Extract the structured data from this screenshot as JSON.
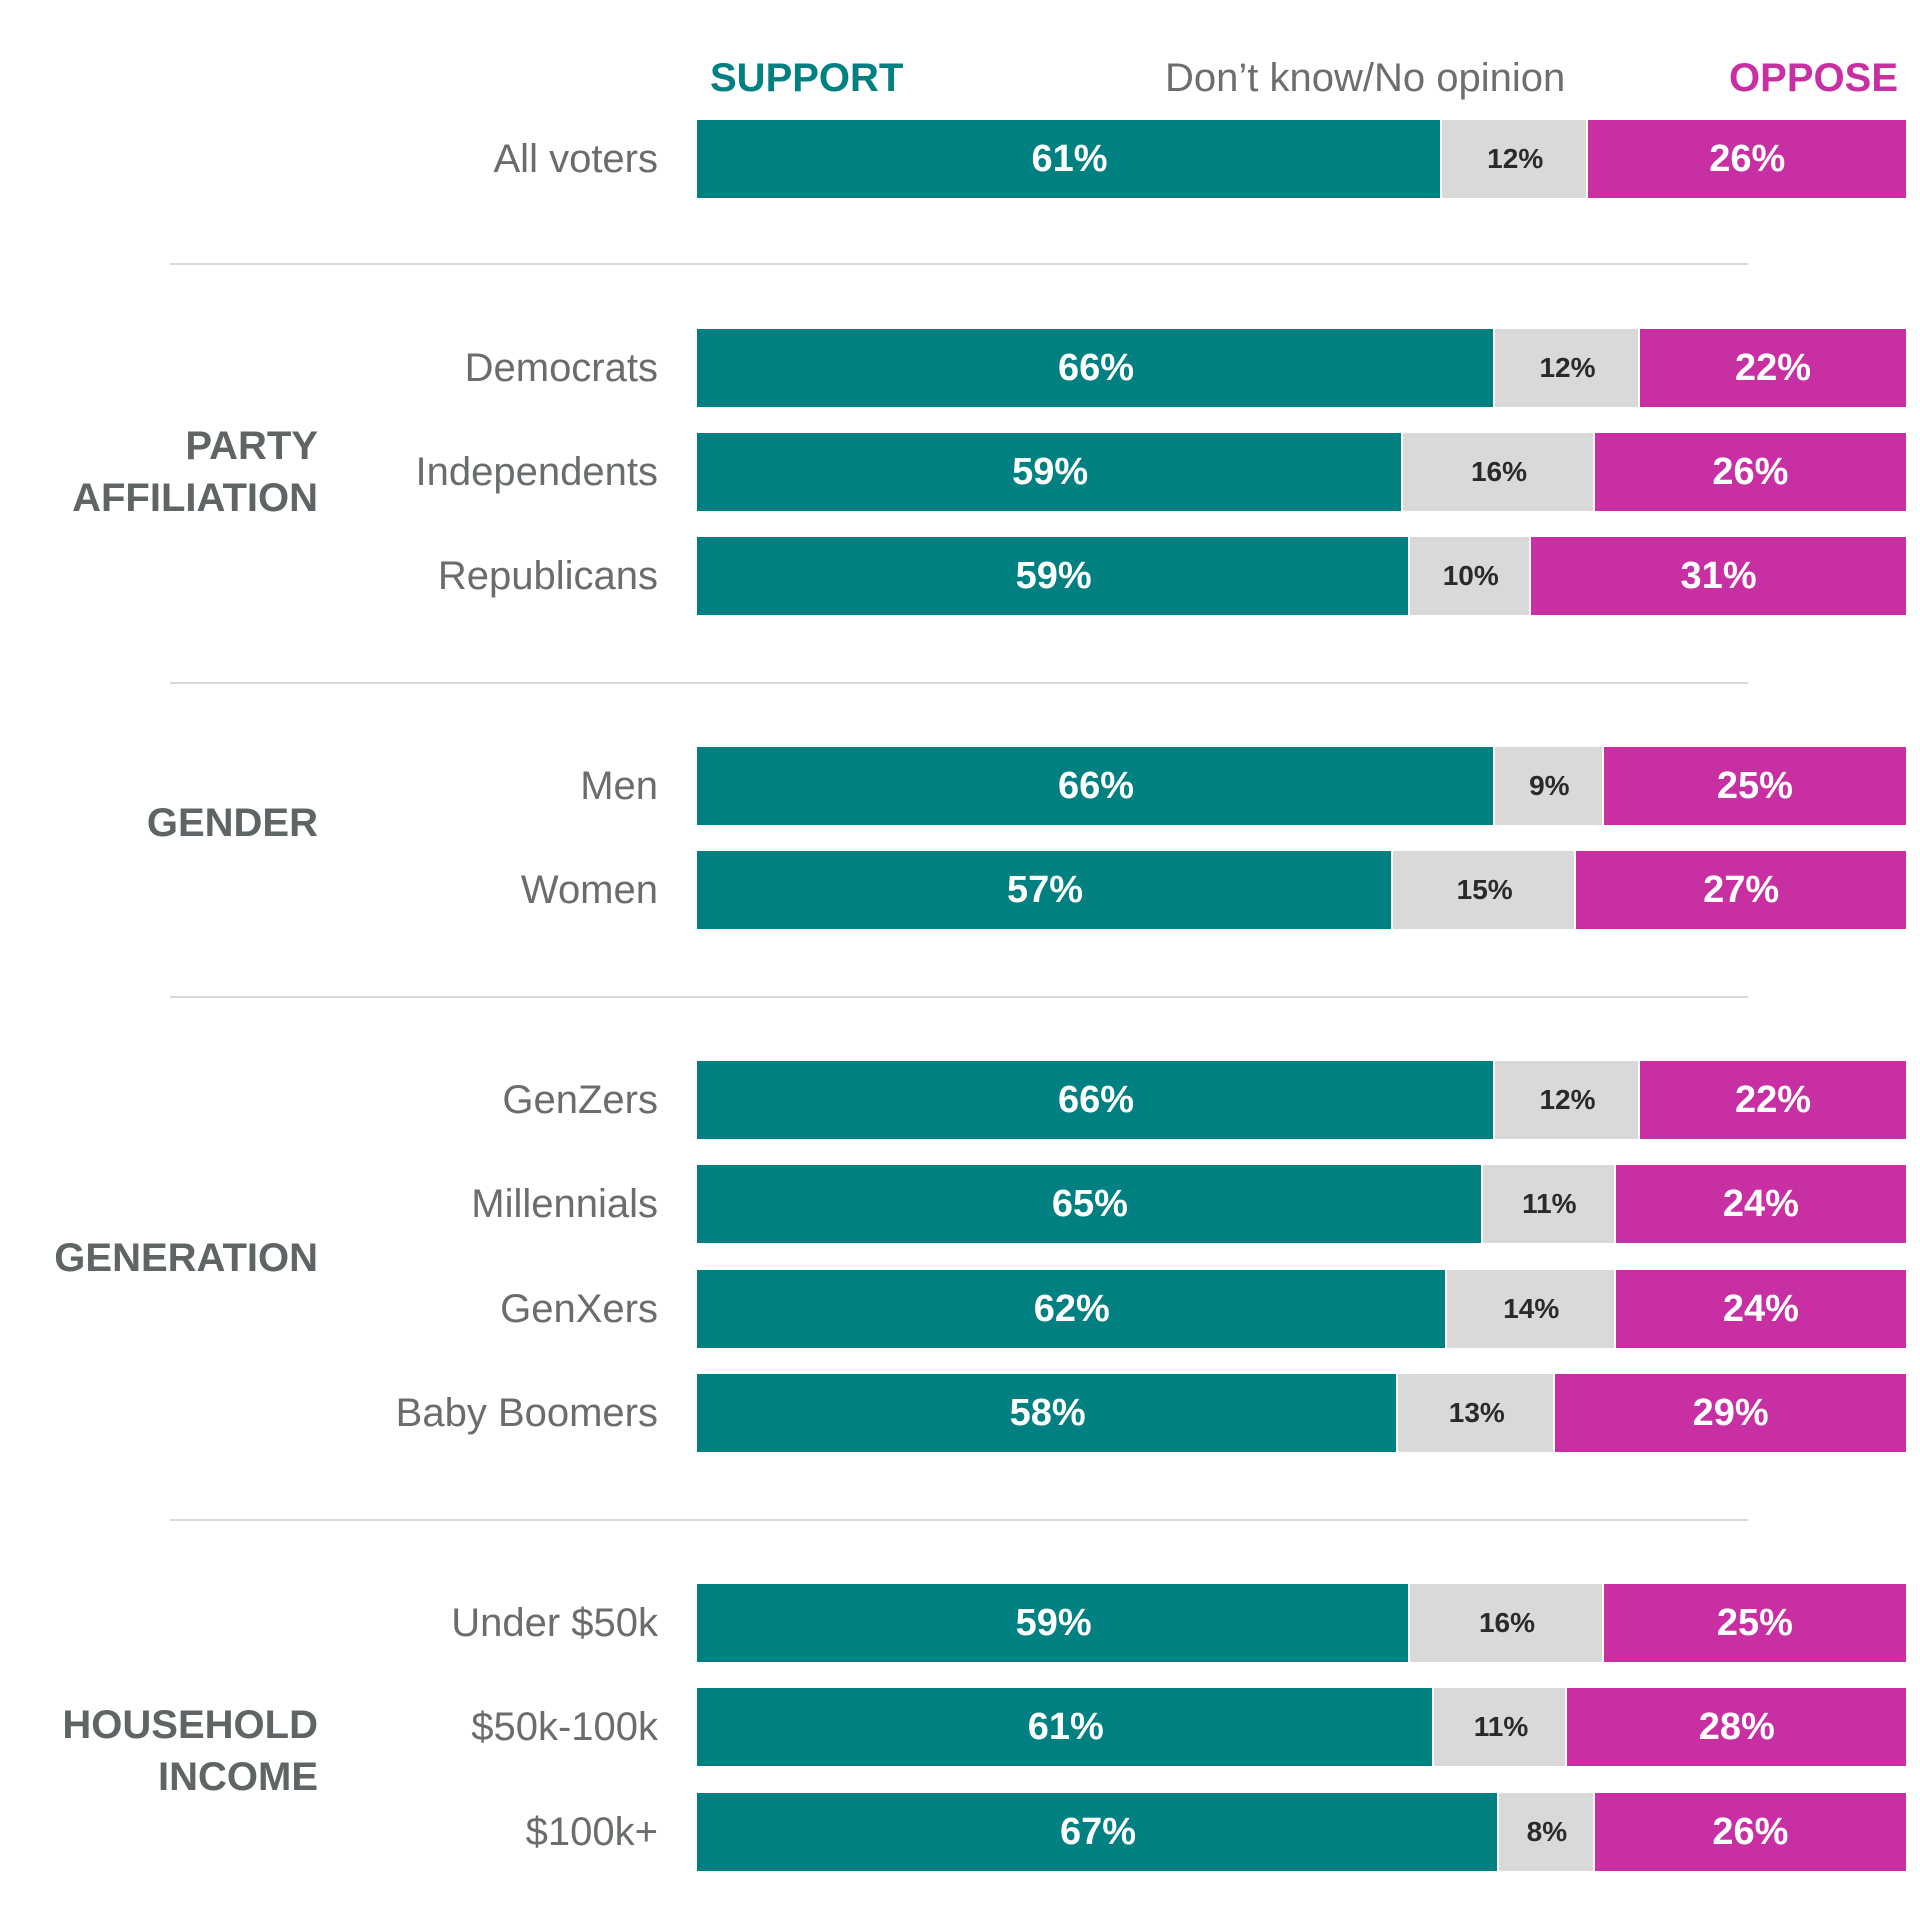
{
  "chart_data": {
    "type": "bar",
    "orientation": "horizontal-stacked-100",
    "legend": {
      "support": "SUPPORT",
      "dont_know": "Don’t know/No opinion",
      "oppose": "OPPOSE"
    },
    "colors": {
      "support": "#008080",
      "dont_know": "#d9d9d9",
      "oppose": "#c72fa3",
      "support_text": "#008080",
      "oppose_text": "#c72fa3"
    },
    "groups": [
      {
        "label": "",
        "rows": [
          {
            "label": "All voters",
            "support": 61,
            "dont_know": 12,
            "oppose": 26,
            "support_label": "61%",
            "dont_know_label": "12%",
            "oppose_label": "26%"
          }
        ]
      },
      {
        "label": "PARTY\nAFFILIATION",
        "rows": [
          {
            "label": "Democrats",
            "support": 66,
            "dont_know": 12,
            "oppose": 22,
            "support_label": "66%",
            "dont_know_label": "12%",
            "oppose_label": "22%"
          },
          {
            "label": "Independents",
            "support": 59,
            "dont_know": 16,
            "oppose": 26,
            "support_label": "59%",
            "dont_know_label": "16%",
            "oppose_label": "26%"
          },
          {
            "label": "Republicans",
            "support": 59,
            "dont_know": 10,
            "oppose": 31,
            "support_label": "59%",
            "dont_know_label": "10%",
            "oppose_label": "31%"
          }
        ]
      },
      {
        "label": "GENDER",
        "rows": [
          {
            "label": "Men",
            "support": 66,
            "dont_know": 9,
            "oppose": 25,
            "support_label": "66%",
            "dont_know_label": "9%",
            "oppose_label": "25%"
          },
          {
            "label": "Women",
            "support": 57,
            "dont_know": 15,
            "oppose": 27,
            "support_label": "57%",
            "dont_know_label": "15%",
            "oppose_label": "27%"
          }
        ]
      },
      {
        "label": "GENERATION",
        "rows": [
          {
            "label": "GenZers",
            "support": 66,
            "dont_know": 12,
            "oppose": 22,
            "support_label": "66%",
            "dont_know_label": "12%",
            "oppose_label": "22%"
          },
          {
            "label": "Millennials",
            "support": 65,
            "dont_know": 11,
            "oppose": 24,
            "support_label": "65%",
            "dont_know_label": "11%",
            "oppose_label": "24%"
          },
          {
            "label": "GenXers",
            "support": 62,
            "dont_know": 14,
            "oppose": 24,
            "support_label": "62%",
            "dont_know_label": "14%",
            "oppose_label": "24%"
          },
          {
            "label": "Baby Boomers",
            "support": 58,
            "dont_know": 13,
            "oppose": 29,
            "support_label": "58%",
            "dont_know_label": "13%",
            "oppose_label": "29%"
          }
        ]
      },
      {
        "label": "HOUSEHOLD\nINCOME",
        "rows": [
          {
            "label": "Under $50k",
            "support": 59,
            "dont_know": 16,
            "oppose": 25,
            "support_label": "59%",
            "dont_know_label": "16%",
            "oppose_label": "25%"
          },
          {
            "label": "$50k-100k",
            "support": 61,
            "dont_know": 11,
            "oppose": 28,
            "support_label": "61%",
            "dont_know_label": "11%",
            "oppose_label": "28%"
          },
          {
            "label": "$100k+",
            "support": 67,
            "dont_know": 8,
            "oppose": 26,
            "support_label": "67%",
            "dont_know_label": "8%",
            "oppose_label": "26%"
          }
        ]
      }
    ]
  }
}
